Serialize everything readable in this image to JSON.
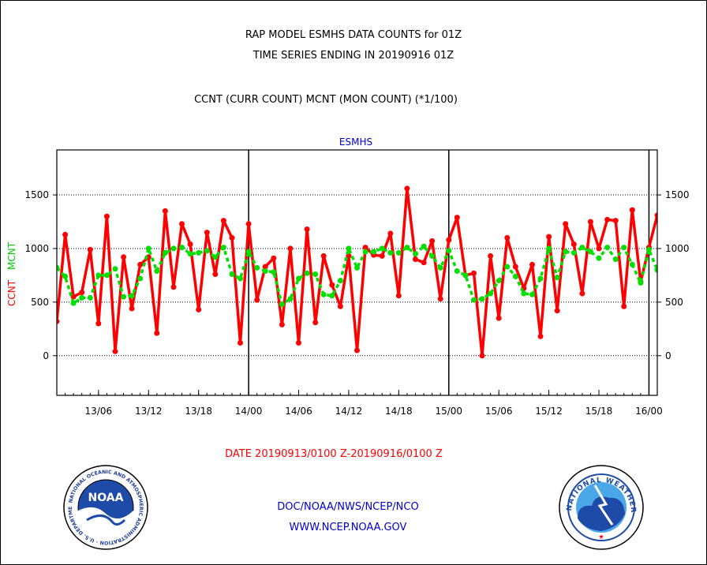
{
  "header": {
    "title_line1": "RAP MODEL ESMHS DATA COUNTS for 01Z",
    "title_line2": "TIME SERIES ENDING IN 20190916 01Z",
    "subtitle": "CCNT (CURR COUNT) MCNT (MON COUNT) (*1/100)"
  },
  "footer": {
    "date_range": "DATE 20190913/0100 Z-20190916/0100 Z",
    "org_line": "DOC/NOAA/NWS/NCEP/NCO",
    "url_line": "WWW.NCEP.NOAA.GOV",
    "noaa_logo_text": "NOAA",
    "noaa_ring_text": "NATIONAL OCEANIC AND ATMOSPHERIC ADMINISTRATION · U.S. DEPARTMENT OF COMMERCE",
    "nws_ring_text": "NATIONAL WEATHER SERVICE"
  },
  "colors": {
    "ccnt": "#ff0000",
    "mcnt": "#00e000",
    "title_text": "#000000",
    "plot_title_text": "#0000cc",
    "footer_org_text": "#0000cc",
    "date_text": "#ff0000"
  },
  "chart_data": {
    "type": "line",
    "title": "ESMHS",
    "ylabel_parts": [
      "CCNT",
      "MCNT"
    ],
    "ylim": [
      -370,
      1920
    ],
    "yticks": [
      0,
      500,
      1000,
      1500
    ],
    "y_tick_labels": [
      "0",
      "500",
      "1000",
      "1500"
    ],
    "xlim_hours": [
      1,
      73
    ],
    "x_tick_hours": [
      6,
      12,
      18,
      24,
      30,
      36,
      42,
      48,
      54,
      60,
      66,
      72
    ],
    "x_tick_labels": [
      "13/06",
      "13/12",
      "13/18",
      "14/00",
      "14/06",
      "14/12",
      "14/18",
      "15/00",
      "15/06",
      "15/12",
      "15/18",
      "16/00"
    ],
    "day_boundaries": [
      24,
      48,
      72
    ],
    "horizontal_gridlines": [
      0,
      500,
      1000,
      1500
    ],
    "series": [
      {
        "name": "CCNT",
        "values": [
          320,
          1130,
          550,
          590,
          990,
          300,
          1300,
          40,
          920,
          440,
          850,
          920,
          210,
          1350,
          640,
          1230,
          1040,
          430,
          1150,
          760,
          1260,
          1100,
          120,
          1230,
          520,
          830,
          910,
          290,
          1000,
          120,
          1180,
          310,
          930,
          660,
          460,
          930,
          50,
          1010,
          940,
          930,
          1140,
          560,
          1560,
          900,
          870,
          1070,
          530,
          1080,
          1290,
          750,
          770,
          0,
          930,
          350,
          1100,
          830,
          630,
          850,
          180,
          1110,
          420,
          1230,
          1040,
          580,
          1250,
          1000,
          1270,
          1260,
          460,
          1360,
          690,
          1010,
          1310
        ]
      },
      {
        "name": "MCNT",
        "values": [
          820,
          740,
          490,
          540,
          540,
          750,
          750,
          810,
          550,
          560,
          720,
          1000,
          790,
          960,
          1000,
          1010,
          950,
          960,
          980,
          920,
          1010,
          760,
          720,
          970,
          820,
          790,
          780,
          480,
          530,
          720,
          770,
          760,
          570,
          560,
          700,
          1000,
          820,
          970,
          970,
          1000,
          960,
          960,
          1010,
          950,
          1020,
          930,
          820,
          980,
          790,
          750,
          520,
          530,
          580,
          700,
          830,
          740,
          580,
          570,
          720,
          1000,
          730,
          970,
          960,
          1010,
          970,
          910,
          1010,
          900,
          1010,
          850,
          680,
          990,
          800
        ]
      }
    ],
    "x_hours_note": "hour 1 = 13/01, one point per hour through 16/01"
  }
}
